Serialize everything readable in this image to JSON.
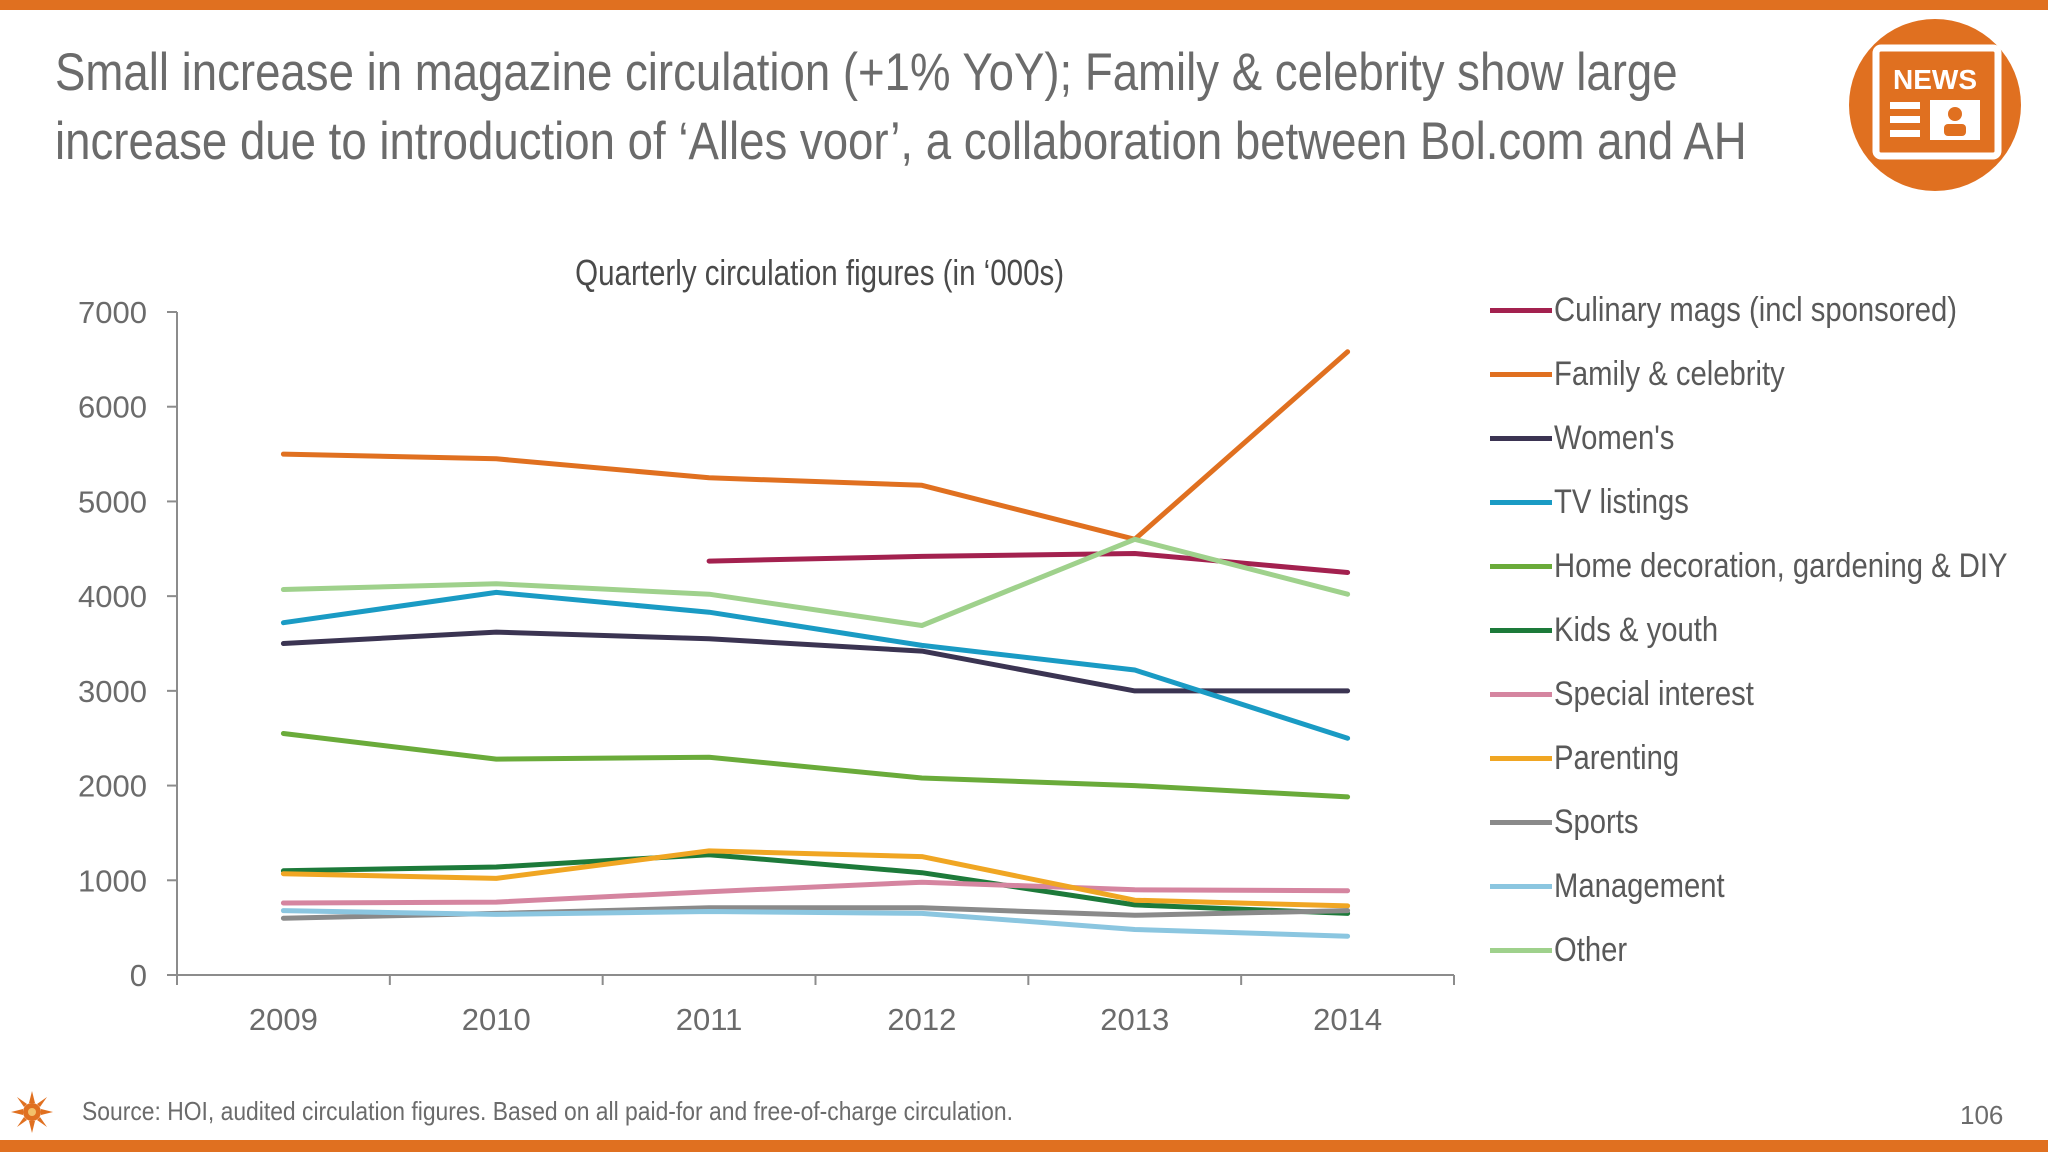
{
  "slide": {
    "title_line1": "Small increase in magazine circulation (+1% YoY); Family & celebrity show large",
    "title_line2": "increase due to introduction of ‘Alles voor’, a collaboration between Bol.com and AH",
    "news_badge": "NEWS",
    "source": "Source: HOI, audited circulation figures. Based on all paid-for and free-of-charge circulation.",
    "page_number": "106",
    "accent_color": "#e07020"
  },
  "chart_data": {
    "type": "line",
    "title": "Quarterly circulation figures (in ‘000s)",
    "categories": [
      "2009",
      "2010",
      "2011",
      "2012",
      "2013",
      "2014"
    ],
    "ylim": [
      0,
      7000
    ],
    "yticks": [
      0,
      1000,
      2000,
      3000,
      4000,
      5000,
      6000,
      7000
    ],
    "grid": false,
    "legend_position": "right",
    "series": [
      {
        "name": "Culinary mags (incl sponsored)",
        "color": "#a3214f",
        "values": [
          null,
          null,
          4370,
          4420,
          4450,
          4250
        ]
      },
      {
        "name": "Family & celebrity",
        "color": "#e07020",
        "values": [
          5500,
          5450,
          5250,
          5170,
          4600,
          6580
        ]
      },
      {
        "name": "Women's",
        "color": "#3b3452",
        "values": [
          3500,
          3620,
          3550,
          3420,
          3000,
          3000
        ]
      },
      {
        "name": "TV listings",
        "color": "#1a9bc4",
        "values": [
          3720,
          4040,
          3830,
          3480,
          3220,
          2500
        ]
      },
      {
        "name": "Home decoration, gardening & DIY",
        "color": "#6aab3a",
        "values": [
          2550,
          2280,
          2300,
          2080,
          2000,
          1880
        ]
      },
      {
        "name": "Kids & youth",
        "color": "#1d7a3a",
        "values": [
          1100,
          1140,
          1270,
          1080,
          740,
          650
        ]
      },
      {
        "name": "Special interest",
        "color": "#d585a0",
        "values": [
          760,
          770,
          880,
          980,
          900,
          890
        ]
      },
      {
        "name": "Parenting",
        "color": "#f0a623",
        "values": [
          1070,
          1020,
          1310,
          1250,
          790,
          730
        ]
      },
      {
        "name": "Sports",
        "color": "#8a8a8a",
        "values": [
          600,
          650,
          710,
          710,
          630,
          680
        ]
      },
      {
        "name": "Management",
        "color": "#8bc6e0",
        "values": [
          680,
          640,
          670,
          650,
          480,
          410
        ]
      },
      {
        "name": "Other",
        "color": "#9fd18c",
        "values": [
          4070,
          4130,
          4020,
          3690,
          4600,
          4020
        ]
      }
    ]
  }
}
